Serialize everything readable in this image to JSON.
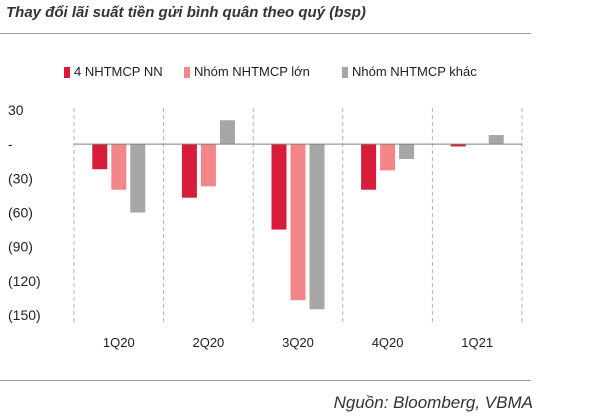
{
  "header": {
    "title": "Thay đổi lãi suất tiền gửi bình quân theo quý (bsp)"
  },
  "footer": {
    "source": "Nguồn: Bloomberg, VBMA"
  },
  "colors": {
    "series1": "#d81d3c",
    "series2": "#f48588",
    "series3": "#a6a6a6",
    "grid": "#b3b3b3"
  },
  "chart_data": {
    "type": "bar",
    "title": "Thay đổi lãi suất tiền gửi bình quân theo quý (bsp)",
    "xlabel": "",
    "ylabel": "",
    "ylim": [
      -150,
      30
    ],
    "yticks": [
      30,
      0,
      -30,
      -60,
      -90,
      -120,
      -150
    ],
    "ytick_labels": [
      "30",
      "-",
      "(30)",
      "(60)",
      "(90)",
      "(120)",
      "(150)"
    ],
    "categories": [
      "1Q20",
      "2Q20",
      "3Q20",
      "4Q20",
      "1Q21"
    ],
    "legend_position": "top",
    "series": [
      {
        "name": "4 NHTMCP NN",
        "values": [
          -22,
          -47,
          -75,
          -40,
          -2
        ]
      },
      {
        "name": "Nhóm NHTMCP lớn",
        "values": [
          -40,
          -37,
          -137,
          -23,
          0
        ]
      },
      {
        "name": "Nhóm NHTMCP khác",
        "values": [
          -60,
          21,
          -145,
          -13,
          8
        ]
      }
    ]
  }
}
